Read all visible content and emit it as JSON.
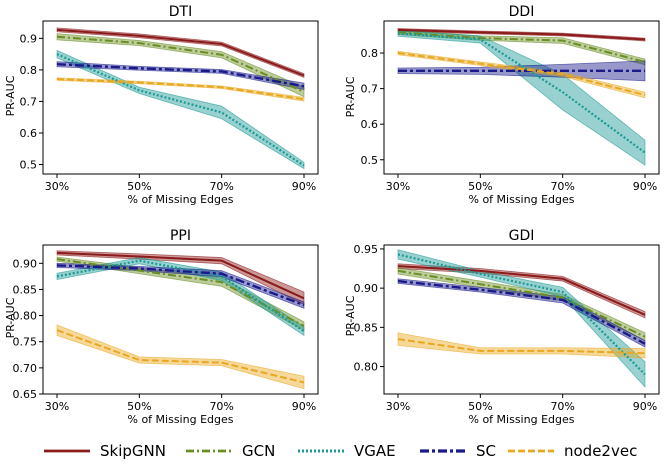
{
  "legend": [
    {
      "name": "SkipGNN",
      "color": "#8b1a1a",
      "dash": "solid"
    },
    {
      "name": "GCN",
      "color": "#6b8e23",
      "dash": "dashdot"
    },
    {
      "name": "VGAE",
      "color": "#1a9a95",
      "dash": "dotted"
    },
    {
      "name": "SC",
      "color": "#1a1a8b",
      "dash": "dashdotbold"
    },
    {
      "name": "node2vec",
      "color": "#e8a820",
      "dash": "dashed"
    }
  ],
  "chart_data": [
    {
      "type": "line",
      "title": "DTI",
      "xlabel": "% of Missing Edges",
      "ylabel": "PR-AUC",
      "categories": [
        "30%",
        "50%",
        "70%",
        "90%"
      ],
      "ylim": [
        0.47,
        0.955
      ],
      "yticks": [
        0.5,
        0.6,
        0.7,
        0.8,
        0.9
      ],
      "ytick_labels": [
        "0.5",
        "0.6",
        "0.7",
        "0.8",
        "0.9"
      ],
      "series": [
        {
          "name": "SkipGNN",
          "values": [
            0.927,
            0.908,
            0.882,
            0.782
          ],
          "band": [
            0.006,
            0.006,
            0.006,
            0.006
          ]
        },
        {
          "name": "GCN",
          "values": [
            0.905,
            0.885,
            0.848,
            0.73
          ],
          "band": [
            0.01,
            0.008,
            0.01,
            0.015
          ]
        },
        {
          "name": "VGAE",
          "values": [
            0.85,
            0.735,
            0.665,
            0.497
          ],
          "band": [
            0.012,
            0.01,
            0.02,
            0.01
          ]
        },
        {
          "name": "SC",
          "values": [
            0.818,
            0.805,
            0.795,
            0.748
          ],
          "band": [
            0.008,
            0.006,
            0.006,
            0.01
          ]
        },
        {
          "name": "node2vec",
          "values": [
            0.771,
            0.76,
            0.745,
            0.707
          ],
          "band": [
            0.004,
            0.004,
            0.004,
            0.006
          ]
        }
      ]
    },
    {
      "type": "line",
      "title": "DDI",
      "xlabel": "% of Missing Edges",
      "ylabel": "PR-AUC",
      "categories": [
        "30%",
        "50%",
        "70%",
        "90%"
      ],
      "ylim": [
        0.46,
        0.89
      ],
      "yticks": [
        0.5,
        0.6,
        0.7,
        0.8
      ],
      "ytick_labels": [
        "0.5",
        "0.6",
        "0.7",
        "0.8"
      ],
      "series": [
        {
          "name": "SkipGNN",
          "values": [
            0.865,
            0.858,
            0.852,
            0.838
          ],
          "band": [
            0.004,
            0.004,
            0.004,
            0.004
          ]
        },
        {
          "name": "GCN",
          "values": [
            0.858,
            0.842,
            0.835,
            0.775
          ],
          "band": [
            0.006,
            0.006,
            0.008,
            0.008
          ]
        },
        {
          "name": "VGAE",
          "values": [
            0.855,
            0.838,
            0.69,
            0.52
          ],
          "band": [
            0.008,
            0.01,
            0.05,
            0.035
          ]
        },
        {
          "name": "SC",
          "values": [
            0.75,
            0.75,
            0.75,
            0.75
          ],
          "band": [
            0.008,
            0.01,
            0.018,
            0.028
          ]
        },
        {
          "name": "node2vec",
          "values": [
            0.8,
            0.77,
            0.74,
            0.682
          ],
          "band": [
            0.005,
            0.005,
            0.006,
            0.008
          ]
        }
      ]
    },
    {
      "type": "line",
      "title": "PPI",
      "xlabel": "% of Missing Edges",
      "ylabel": "PR-AUC",
      "categories": [
        "30%",
        "50%",
        "70%",
        "90%"
      ],
      "ylim": [
        0.65,
        0.935
      ],
      "yticks": [
        0.65,
        0.7,
        0.75,
        0.8,
        0.85,
        0.9
      ],
      "ytick_labels": [
        "0.65",
        "0.70",
        "0.75",
        "0.80",
        "0.85",
        "0.90"
      ],
      "series": [
        {
          "name": "SkipGNN",
          "values": [
            0.92,
            0.913,
            0.905,
            0.833
          ],
          "band": [
            0.004,
            0.005,
            0.006,
            0.012
          ]
        },
        {
          "name": "GCN",
          "values": [
            0.908,
            0.886,
            0.864,
            0.78
          ],
          "band": [
            0.004,
            0.006,
            0.008,
            0.008
          ]
        },
        {
          "name": "VGAE",
          "values": [
            0.875,
            0.905,
            0.875,
            0.77
          ],
          "band": [
            0.006,
            0.006,
            0.008,
            0.008
          ]
        },
        {
          "name": "SC",
          "values": [
            0.896,
            0.89,
            0.88,
            0.82
          ],
          "band": [
            0.004,
            0.004,
            0.006,
            0.006
          ]
        },
        {
          "name": "node2vec",
          "values": [
            0.772,
            0.715,
            0.71,
            0.672
          ],
          "band": [
            0.01,
            0.006,
            0.006,
            0.012
          ]
        }
      ]
    },
    {
      "type": "line",
      "title": "GDI",
      "xlabel": "% of Missing Edges",
      "ylabel": "PR-AUC",
      "categories": [
        "30%",
        "50%",
        "70%",
        "90%"
      ],
      "ylim": [
        0.765,
        0.955
      ],
      "yticks": [
        0.8,
        0.85,
        0.9,
        0.95
      ],
      "ytick_labels": [
        "0.80",
        "0.85",
        "0.90",
        "0.95"
      ],
      "series": [
        {
          "name": "SkipGNN",
          "values": [
            0.928,
            0.922,
            0.912,
            0.866
          ],
          "band": [
            0.003,
            0.003,
            0.003,
            0.004
          ]
        },
        {
          "name": "GCN",
          "values": [
            0.922,
            0.905,
            0.888,
            0.838
          ],
          "band": [
            0.004,
            0.004,
            0.004,
            0.005
          ]
        },
        {
          "name": "VGAE",
          "values": [
            0.943,
            0.918,
            0.895,
            0.79
          ],
          "band": [
            0.006,
            0.004,
            0.006,
            0.016
          ]
        },
        {
          "name": "SC",
          "values": [
            0.909,
            0.898,
            0.885,
            0.829
          ],
          "band": [
            0.003,
            0.003,
            0.004,
            0.004
          ]
        },
        {
          "name": "node2vec",
          "values": [
            0.835,
            0.82,
            0.82,
            0.817
          ],
          "band": [
            0.008,
            0.004,
            0.004,
            0.006
          ]
        }
      ]
    }
  ]
}
